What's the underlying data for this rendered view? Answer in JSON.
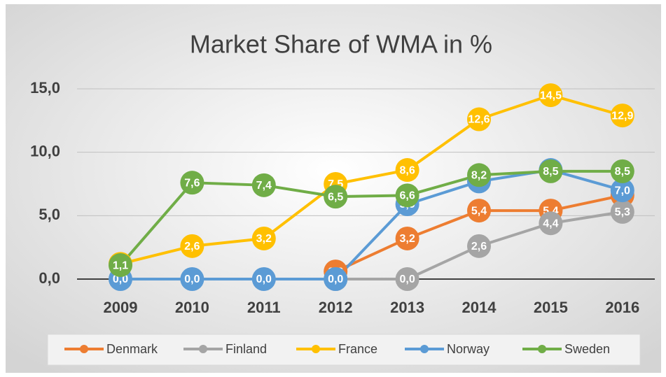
{
  "chart_data": {
    "type": "line",
    "title": "Market Share of WMA in %",
    "categories": [
      "2009",
      "2010",
      "2011",
      "2012",
      "2013",
      "2014",
      "2015",
      "2016"
    ],
    "ylim": [
      0,
      15
    ],
    "yticks": [
      {
        "value": 0,
        "label": "0,0"
      },
      {
        "value": 5,
        "label": "5,0"
      },
      {
        "value": 10,
        "label": "10,0"
      },
      {
        "value": 15,
        "label": "15,0"
      }
    ],
    "grid": true,
    "legend": "bottom",
    "series": [
      {
        "name": "Denmark",
        "color": "#ED7D31",
        "values": [
          null,
          null,
          null,
          0.6,
          3.2,
          5.4,
          5.4,
          6.6
        ],
        "value_labels": [
          null,
          null,
          null,
          "0,6",
          "3,2",
          "5,4",
          "5,4",
          "6,6"
        ]
      },
      {
        "name": "Finland",
        "color": "#A5A5A5",
        "values": [
          null,
          null,
          null,
          0.0,
          0.0,
          2.6,
          4.4,
          5.3
        ],
        "value_labels": [
          null,
          null,
          null,
          "0,0",
          "0,0",
          "2,6",
          "4,4",
          "5,3"
        ]
      },
      {
        "name": "France",
        "color": "#FFC000",
        "values": [
          1.2,
          2.6,
          3.2,
          7.5,
          8.6,
          12.6,
          14.5,
          12.9
        ],
        "value_labels": [
          "1,2",
          "2,6",
          "3,2",
          "7,5",
          "8,6",
          "12,6",
          "14,5",
          "12,9"
        ]
      },
      {
        "name": "Norway",
        "color": "#5B9BD5",
        "values": [
          0.0,
          0.0,
          0.0,
          0.0,
          5.9,
          7.7,
          8.6,
          7.0
        ],
        "value_labels": [
          "0,0",
          "0,0",
          "0,0",
          "0,0",
          "5,9",
          "7,7",
          "8,6",
          "7,0"
        ]
      },
      {
        "name": "Sweden",
        "color": "#70AD47",
        "values": [
          1.1,
          7.6,
          7.4,
          6.5,
          6.6,
          8.2,
          8.5,
          8.5
        ],
        "value_labels": [
          "1,1",
          "7,6",
          "7,4",
          "6,5",
          "6,6",
          "8,2",
          "8,5",
          "8,5"
        ]
      }
    ]
  }
}
